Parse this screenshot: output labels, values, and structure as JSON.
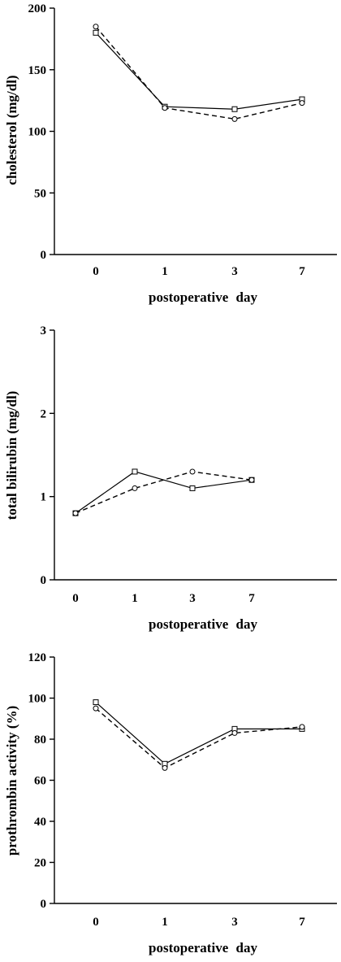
{
  "chart_data": [
    {
      "type": "line",
      "categories": [
        "0",
        "1",
        "3",
        "7"
      ],
      "xlabel": "postoperative day",
      "ylabel": "cholesterol (mg/dl)",
      "ylim": [
        0,
        200
      ],
      "yticks": [
        "0",
        "50",
        "100",
        "150",
        "200"
      ],
      "series": [
        {
          "marker": "square",
          "style": "solid",
          "values": [
            180,
            120,
            118,
            126
          ]
        },
        {
          "marker": "circle",
          "style": "dashed",
          "values": [
            185,
            119,
            110,
            123
          ]
        }
      ],
      "grid": false
    },
    {
      "type": "line",
      "categories": [
        "0",
        "1",
        "3",
        "7"
      ],
      "xlabel": "postoperative day",
      "ylabel": "total bilirubin (mg/dl)",
      "ylim": [
        0,
        3
      ],
      "yticks": [
        "0",
        "1",
        "2",
        "3"
      ],
      "series": [
        {
          "marker": "square",
          "style": "solid",
          "values": [
            0.8,
            1.3,
            1.1,
            1.2
          ]
        },
        {
          "marker": "circle",
          "style": "dashed",
          "values": [
            0.8,
            1.1,
            1.3,
            1.2
          ]
        }
      ],
      "grid": false
    },
    {
      "type": "line",
      "categories": [
        "0",
        "1",
        "3",
        "7"
      ],
      "xlabel": "postoperative day",
      "ylabel": "prothrombin activity (%)",
      "ylim": [
        0,
        120
      ],
      "yticks": [
        "0",
        "20",
        "40",
        "60",
        "80",
        "100",
        "120"
      ],
      "series": [
        {
          "marker": "square",
          "style": "solid",
          "values": [
            98,
            68,
            85,
            85
          ]
        },
        {
          "marker": "circle",
          "style": "dashed",
          "values": [
            95,
            66,
            83,
            86
          ]
        }
      ],
      "grid": false
    }
  ]
}
